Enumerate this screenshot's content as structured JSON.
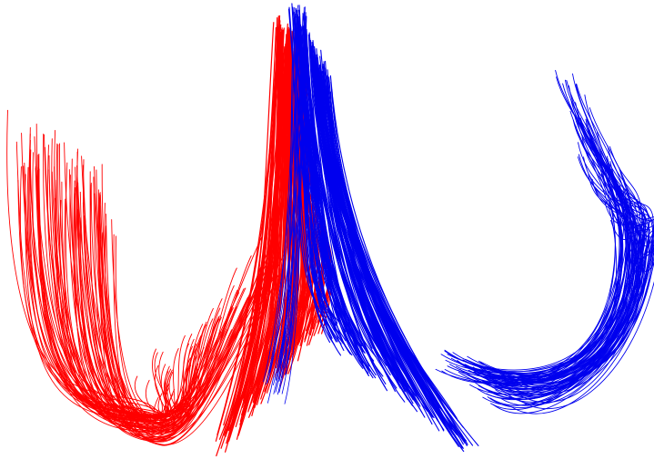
{
  "colors": {
    "background": "#ffffff",
    "left_group": "#ff0000",
    "right_group": "#0000ee"
  },
  "bundles": [
    {
      "name": "left-u-bundle",
      "color": "#ff0000"
    },
    {
      "name": "central-red-bundle",
      "color": "#ff0000"
    },
    {
      "name": "central-blue-bundle",
      "color": "#0000ee"
    },
    {
      "name": "right-u-bundle",
      "color": "#0000ee"
    }
  ]
}
